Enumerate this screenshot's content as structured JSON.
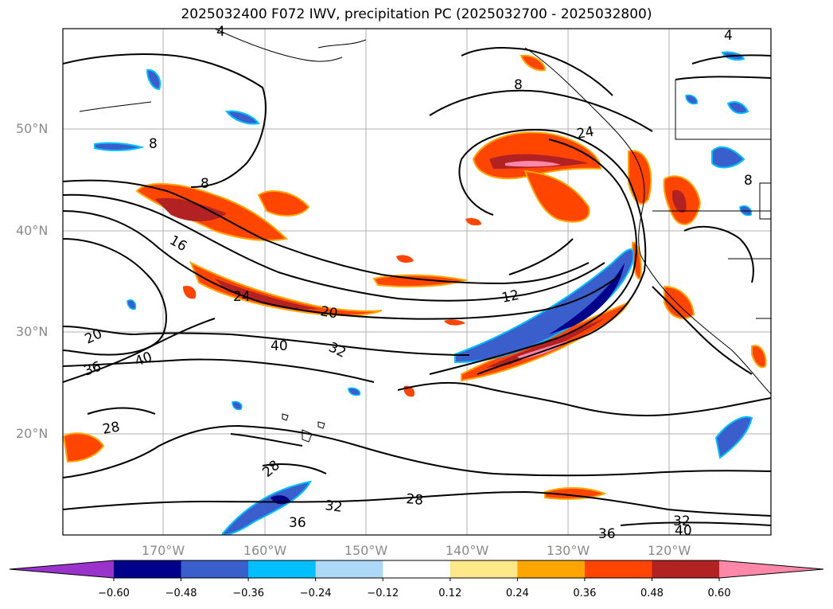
{
  "title": "2025032400 F072 IWV, precipitation PC (2025032700 - 2025032800)",
  "lat_labels": [
    "50°N",
    "40°N",
    "30°N",
    "20°N"
  ],
  "lon_labels": [
    "170°W",
    "160°W",
    "150°W",
    "140°W",
    "130°W",
    "120°W"
  ],
  "contour_labels": [
    "4",
    "8",
    "8",
    "8",
    "8",
    "12",
    "16",
    "20",
    "20",
    "24",
    "24",
    "28",
    "28",
    "28",
    "32",
    "32",
    "36",
    "36",
    "40",
    "40",
    "40",
    "32",
    "36",
    "4"
  ],
  "colorbar": {
    "ticks": [
      "−0.60",
      "−0.48",
      "−0.36",
      "−0.24",
      "−0.12",
      "0.12",
      "0.24",
      "0.36",
      "0.48",
      "0.60"
    ],
    "colors": [
      "#9933cc",
      "#00008b",
      "#3a5fcd",
      "#00bfff",
      "#add8f7",
      "#ffffff",
      "#ffe88a",
      "#ffa500",
      "#ff4500",
      "#b22222",
      "#ff88aa"
    ]
  }
}
